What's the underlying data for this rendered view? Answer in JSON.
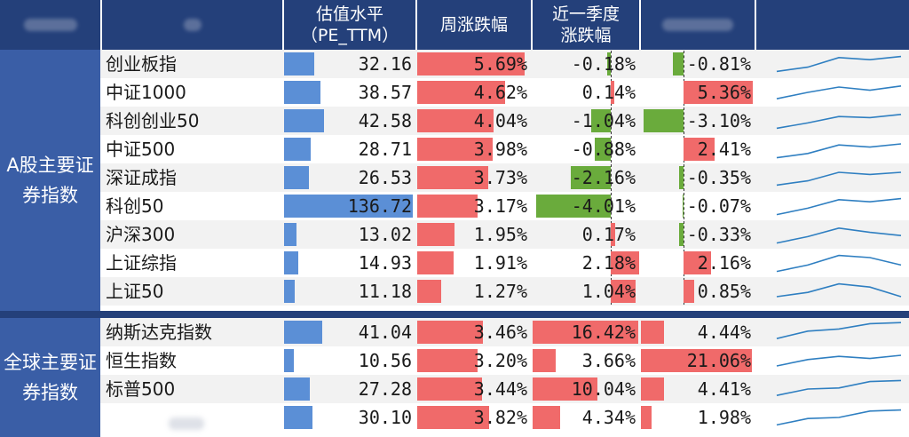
{
  "header": {
    "col_pe": "估值水平",
    "col_pe_sub": "（PE_TTM）",
    "col_week": "周涨跌幅",
    "col_quarter": "近一季度",
    "col_quarter_sub": "涨跌幅"
  },
  "colors": {
    "header_bg": "#24407a",
    "group_bg": "#3a5ea6",
    "pe_bar": "#5b8fd6",
    "positive_bar": "#f06a6a",
    "negative_bar": "#6aab3c",
    "sparkline": "#2f7fc1"
  },
  "groups": [
    {
      "label": "A股主要证券指数",
      "rows": [
        {
          "name": "创业板指",
          "pe": "32.16",
          "pe_num": 32.16,
          "week": "5.69%",
          "week_num": 5.69,
          "quarter": "-0.18%",
          "quarter_num": -0.18,
          "col5": "-0.81%",
          "col5_num": -0.81,
          "spark": [
            0.15,
            0.35,
            0.8,
            0.7,
            0.85
          ]
        },
        {
          "name": "中证1000",
          "pe": "38.57",
          "pe_num": 38.57,
          "week": "4.62%",
          "week_num": 4.62,
          "quarter": "0.14%",
          "quarter_num": 0.14,
          "col5": "5.36%",
          "col5_num": 5.36,
          "spark": [
            0.2,
            0.5,
            0.75,
            0.6,
            0.8
          ]
        },
        {
          "name": "科创创业50",
          "pe": "42.58",
          "pe_num": 42.58,
          "week": "4.04%",
          "week_num": 4.04,
          "quarter": "-1.04%",
          "quarter_num": -1.04,
          "col5": "-3.10%",
          "col5_num": -3.1,
          "spark": [
            0.15,
            0.4,
            0.7,
            0.65,
            0.8
          ]
        },
        {
          "name": "中证500",
          "pe": "28.71",
          "pe_num": 28.71,
          "week": "3.98%",
          "week_num": 3.98,
          "quarter": "-0.88%",
          "quarter_num": -0.88,
          "col5": "2.41%",
          "col5_num": 2.41,
          "spark": [
            0.1,
            0.3,
            0.7,
            0.6,
            0.75
          ]
        },
        {
          "name": "深证成指",
          "pe": "26.53",
          "pe_num": 26.53,
          "week": "3.73%",
          "week_num": 3.73,
          "quarter": "-2.16%",
          "quarter_num": -2.16,
          "col5": "-0.35%",
          "col5_num": -0.35,
          "spark": [
            0.15,
            0.35,
            0.75,
            0.65,
            0.75
          ]
        },
        {
          "name": "科创50",
          "pe": "136.72",
          "pe_num": 136.72,
          "week": "3.17%",
          "week_num": 3.17,
          "quarter": "-4.01%",
          "quarter_num": -4.01,
          "col5": "-0.07%",
          "col5_num": -0.07,
          "spark": [
            0.1,
            0.4,
            0.8,
            0.7,
            0.85
          ]
        },
        {
          "name": "沪深300",
          "pe": "13.02",
          "pe_num": 13.02,
          "week": "1.95%",
          "week_num": 1.95,
          "quarter": "0.17%",
          "quarter_num": 0.17,
          "col5": "-0.33%",
          "col5_num": -0.33,
          "spark": [
            0.1,
            0.4,
            0.8,
            0.6,
            0.45
          ]
        },
        {
          "name": "上证综指",
          "pe": "14.93",
          "pe_num": 14.93,
          "week": "1.91%",
          "week_num": 1.91,
          "quarter": "2.18%",
          "quarter_num": 2.18,
          "col5": "2.16%",
          "col5_num": 2.16,
          "spark": [
            0.1,
            0.4,
            0.85,
            0.75,
            0.4
          ]
        },
        {
          "name": "上证50",
          "pe": "11.18",
          "pe_num": 11.18,
          "week": "1.27%",
          "week_num": 1.27,
          "quarter": "1.04%",
          "quarter_num": 1.04,
          "col5": "0.85%",
          "col5_num": 0.85,
          "spark": [
            0.25,
            0.45,
            0.85,
            0.7,
            0.25
          ]
        }
      ]
    },
    {
      "label": "全球主要证券指数",
      "rows": [
        {
          "name": "纳斯达克指数",
          "pe": "41.04",
          "pe_num": 41.04,
          "week": "3.46%",
          "week_num": 3.46,
          "quarter": "16.42%",
          "quarter_num": 16.42,
          "col5": "4.44%",
          "col5_num": 4.44,
          "spark": [
            0.2,
            0.55,
            0.65,
            0.9,
            0.95
          ]
        },
        {
          "name": "恒生指数",
          "pe": "10.56",
          "pe_num": 10.56,
          "week": "3.20%",
          "week_num": 3.2,
          "quarter": "3.66%",
          "quarter_num": 3.66,
          "col5": "21.06%",
          "col5_num": 21.06,
          "spark": [
            0.25,
            0.55,
            0.7,
            0.6,
            0.75
          ]
        },
        {
          "name": "标普500",
          "pe": "27.28",
          "pe_num": 27.28,
          "week": "3.44%",
          "week_num": 3.44,
          "quarter": "10.04%",
          "quarter_num": 10.04,
          "col5": "4.41%",
          "col5_num": 4.41,
          "spark": [
            0.2,
            0.5,
            0.55,
            0.85,
            0.9
          ]
        },
        {
          "name": "",
          "pe": "30.10",
          "pe_num": 30.1,
          "week": "3.82%",
          "week_num": 3.82,
          "quarter": "4.34%",
          "quarter_num": 4.34,
          "col5": "1.98%",
          "col5_num": 1.98,
          "spark": [
            0.15,
            0.45,
            0.5,
            0.8,
            0.85
          ]
        }
      ]
    }
  ]
}
